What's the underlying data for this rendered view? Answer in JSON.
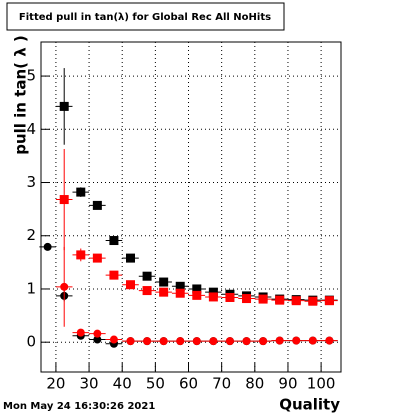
{
  "chart_data": {
    "type": "scatter",
    "title": "Fitted pull in tan(λ) for Global Rec All NoHits",
    "x_label": "Quality",
    "y_label": "pull in tan( λ )",
    "timestamp": "Mon May 24 16:30:26 2021",
    "xlim": [
      15.5,
      106
    ],
    "ylim": [
      -0.56,
      5.64
    ],
    "xticks": [
      20,
      30,
      40,
      50,
      60,
      70,
      80,
      90,
      100
    ],
    "yticks": [
      0,
      1,
      2,
      3,
      4,
      5
    ],
    "grid": true,
    "xerr": 2.5,
    "series": [
      {
        "marker": "square",
        "color": "#000000",
        "x": [
          22.5,
          27.5,
          32.5,
          37.5,
          42.5,
          47.5,
          52.5,
          57.5,
          62.5,
          67.5,
          72.5,
          77.5,
          82.5,
          87.5,
          92.5,
          97.5,
          102.5
        ],
        "values": [
          4.43,
          2.82,
          2.57,
          1.91,
          1.58,
          1.24,
          1.13,
          1.05,
          1.0,
          0.94,
          0.9,
          0.87,
          0.85,
          0.81,
          0.8,
          0.79,
          0.79
        ],
        "yerr": [
          0.72,
          0.09,
          0.06,
          0.06,
          0.04,
          0.03,
          0.03,
          0.03,
          0.03,
          0.03,
          0.03,
          0.03,
          0.03,
          0.03,
          0.03,
          0.03,
          0.03
        ]
      },
      {
        "marker": "square",
        "color": "#ff0000",
        "x": [
          22.5,
          27.5,
          32.5,
          37.5,
          42.5,
          47.5,
          52.5,
          57.5,
          62.5,
          67.5,
          72.5,
          77.5,
          82.5,
          87.5,
          92.5,
          97.5,
          102.5
        ],
        "values": [
          2.68,
          1.64,
          1.58,
          1.26,
          1.08,
          0.97,
          0.94,
          0.92,
          0.88,
          0.85,
          0.84,
          0.82,
          0.81,
          0.79,
          0.78,
          0.77,
          0.78
        ],
        "yerr": [
          0.95,
          0.12,
          0.07,
          0.06,
          0.04,
          0.03,
          0.03,
          0.03,
          0.03,
          0.03,
          0.03,
          0.03,
          0.03,
          0.03,
          0.03,
          0.03,
          0.03
        ]
      },
      {
        "marker": "circle",
        "color": "#000000",
        "x": [
          17.5,
          22.5,
          27.5,
          32.5,
          37.5,
          42.5,
          47.5,
          52.5,
          57.5,
          62.5,
          67.5,
          72.5,
          77.5,
          82.5,
          87.5,
          92.5,
          97.5,
          102.5
        ],
        "values": [
          1.79,
          0.87,
          0.12,
          0.05,
          -0.03,
          0.02,
          0.02,
          0.02,
          0.02,
          0.02,
          0.02,
          0.02,
          0.02,
          0.02,
          0.03,
          0.03,
          0.03,
          0.03
        ],
        "yerr": [
          0.05,
          0.1,
          0.06,
          0.04,
          0.03,
          0.02,
          0.02,
          0.02,
          0.02,
          0.02,
          0.02,
          0.02,
          0.02,
          0.02,
          0.02,
          0.02,
          0.02,
          0.02
        ]
      },
      {
        "marker": "circle",
        "color": "#ff0000",
        "x": [
          22.5,
          27.5,
          32.5,
          37.5,
          42.5,
          47.5,
          52.5,
          57.5,
          62.5,
          67.5,
          72.5,
          77.5,
          82.5,
          87.5,
          92.5,
          97.5,
          102.5
        ],
        "values": [
          1.04,
          0.18,
          0.16,
          0.05,
          0.02,
          0.02,
          0.02,
          0.02,
          0.02,
          0.02,
          0.02,
          0.02,
          0.02,
          0.03,
          0.03,
          0.03,
          0.03
        ],
        "yerr": [
          0.75,
          0.06,
          0.05,
          0.03,
          0.02,
          0.02,
          0.02,
          0.02,
          0.02,
          0.02,
          0.02,
          0.02,
          0.02,
          0.02,
          0.02,
          0.02,
          0.02
        ]
      }
    ]
  }
}
